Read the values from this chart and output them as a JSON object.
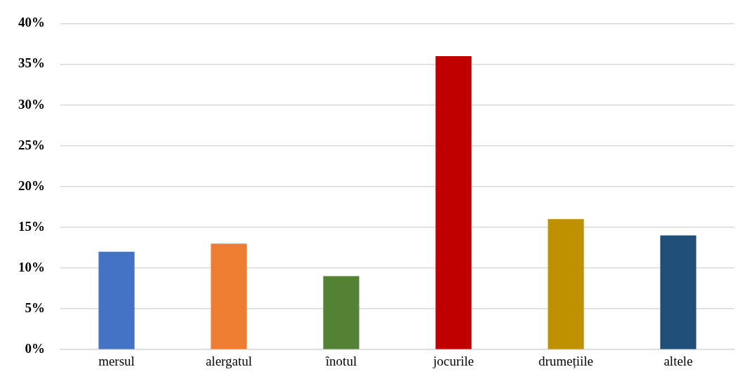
{
  "chart_data": {
    "type": "bar",
    "categories": [
      "mersul",
      "alergatul",
      "înotul",
      "jocurile",
      "drumețiile",
      "altele"
    ],
    "values": [
      12,
      13,
      9,
      36,
      16,
      14
    ],
    "colors": [
      "#4472c4",
      "#ed7d31",
      "#548235",
      "#c00000",
      "#bf9000",
      "#1f4e79"
    ],
    "ylim": [
      0,
      40
    ],
    "yticks": [
      {
        "value": 0,
        "label": "0%"
      },
      {
        "value": 5,
        "label": "5%"
      },
      {
        "value": 10,
        "label": "10%"
      },
      {
        "value": 15,
        "label": "15%"
      },
      {
        "value": 20,
        "label": "20%"
      },
      {
        "value": 25,
        "label": "25%"
      },
      {
        "value": 30,
        "label": "30%"
      },
      {
        "value": 35,
        "label": "35%"
      },
      {
        "value": 40,
        "label": "40%"
      }
    ],
    "grid": "y",
    "legend": false
  }
}
